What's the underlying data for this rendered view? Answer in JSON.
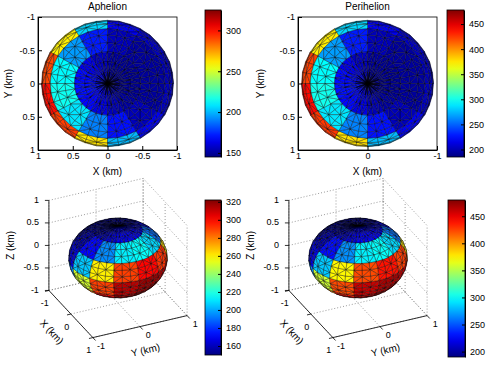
{
  "chart_data": [
    {
      "type": "surface",
      "title": "Aphelion",
      "xlabel": "X (km)",
      "ylabel": "Y (km)",
      "xlim": [
        1,
        -1
      ],
      "xticks": [
        1,
        0.5,
        0,
        -0.5,
        -1
      ],
      "ylim": [
        -1,
        1
      ],
      "yticks": [
        -1,
        -0.5,
        0,
        0.5,
        1
      ],
      "radii": [
        0.95,
        0.95,
        0.7
      ],
      "latitudes": [
        75,
        45,
        15,
        -15,
        -45,
        -75
      ],
      "longitudes": [
        15,
        45,
        75,
        105,
        135,
        165,
        195,
        225,
        255,
        285,
        315,
        345
      ],
      "cells": [
        [
          170,
          168,
          162,
          155,
          150,
          148,
          148,
          148,
          150,
          156,
          163,
          169
        ],
        [
          215,
          208,
          190,
          170,
          155,
          150,
          150,
          150,
          155,
          172,
          195,
          212
        ],
        [
          300,
          292,
          262,
          200,
          165,
          156,
          154,
          156,
          165,
          205,
          260,
          290
        ],
        [
          318,
          312,
          295,
          258,
          190,
          165,
          160,
          165,
          195,
          250,
          290,
          312
        ],
        [
          322,
          318,
          306,
          285,
          256,
          226,
          208,
          220,
          248,
          278,
          300,
          316
        ],
        [
          314,
          312,
          307,
          299,
          291,
          284,
          281,
          283,
          289,
          297,
          305,
          312
        ]
      ],
      "clim": [
        145,
        325
      ],
      "cticks": [
        150,
        200,
        250,
        300
      ]
    },
    {
      "type": "surface",
      "title": "Perihelion",
      "xlabel": "X (km)",
      "ylabel": "Y (km)",
      "xlim": [
        1,
        -1
      ],
      "xticks": [
        1,
        0,
        -1
      ],
      "ylim": [
        -1,
        1
      ],
      "yticks": [
        -1,
        -0.5,
        0,
        0.5,
        1
      ],
      "radii": [
        0.95,
        0.95,
        0.7
      ],
      "latitudes": [
        75,
        45,
        15,
        -15,
        -45,
        -75
      ],
      "longitudes": [
        15,
        45,
        75,
        105,
        135,
        165,
        195,
        225,
        255,
        285,
        315,
        345
      ],
      "cells": [
        [
          226,
          223,
          213,
          201,
          193,
          190,
          190,
          190,
          193,
          203,
          215,
          224
        ],
        [
          300,
          288,
          259,
          226,
          201,
          193,
          193,
          193,
          201,
          229,
          267,
          295
        ],
        [
          439,
          426,
          377,
          275,
          218,
          203,
          200,
          203,
          218,
          283,
          373,
          423
        ],
        [
          468,
          459,
          431,
          370,
          259,
          218,
          210,
          218,
          267,
          357,
          423,
          459
        ],
        [
          475,
          468,
          449,
          414,
          367,
          318,
          288,
          308,
          354,
          403,
          439,
          465
        ],
        [
          462,
          459,
          450,
          437,
          424,
          413,
          408,
          411,
          421,
          434,
          447,
          459
        ]
      ],
      "clim": [
        185,
        478
      ],
      "cticks": [
        200,
        250,
        300,
        350,
        400,
        450
      ]
    },
    {
      "type": "surface",
      "xlabel": "X (km)",
      "ylabel": "Y (km)",
      "zlabel": "Z (km)",
      "xlim": [
        -1,
        1
      ],
      "xticks": [
        -1,
        0,
        1
      ],
      "ylim": [
        -1,
        1
      ],
      "yticks": [
        -1,
        0,
        1
      ],
      "zlim": [
        -1,
        1
      ],
      "zticks": [
        -1,
        -0.5,
        0,
        0.5,
        1
      ],
      "radii": [
        0.95,
        0.95,
        0.7
      ],
      "latitudes": [
        75,
        45,
        15,
        -15,
        -45,
        -75
      ],
      "longitudes": [
        15,
        45,
        75,
        105,
        135,
        165,
        195,
        225,
        255,
        285,
        315,
        345
      ],
      "cells": [
        [
          170,
          168,
          162,
          155,
          150,
          148,
          148,
          148,
          150,
          156,
          163,
          169
        ],
        [
          215,
          208,
          190,
          170,
          155,
          150,
          150,
          150,
          155,
          172,
          195,
          212
        ],
        [
          300,
          292,
          262,
          200,
          165,
          156,
          154,
          156,
          165,
          205,
          260,
          290
        ],
        [
          318,
          312,
          295,
          258,
          190,
          165,
          160,
          165,
          195,
          250,
          290,
          312
        ],
        [
          322,
          318,
          306,
          285,
          256,
          226,
          208,
          220,
          248,
          278,
          300,
          316
        ],
        [
          314,
          312,
          307,
          299,
          291,
          284,
          281,
          283,
          289,
          297,
          305,
          312
        ]
      ],
      "clim": [
        150,
        322
      ],
      "cticks": [
        160,
        180,
        200,
        220,
        240,
        260,
        280,
        300,
        320
      ]
    },
    {
      "type": "surface",
      "xlabel": "X (km)",
      "ylabel": "Y (km)",
      "zlabel": "Z (km)",
      "xlim": [
        -1,
        1
      ],
      "xticks": [
        -1,
        0,
        1
      ],
      "ylim": [
        -1,
        1
      ],
      "yticks": [
        -1,
        0,
        1
      ],
      "zlim": [
        -1,
        1
      ],
      "zticks": [
        -1,
        -0.5,
        0,
        0.5,
        1
      ],
      "radii": [
        0.95,
        0.95,
        0.7
      ],
      "latitudes": [
        75,
        45,
        15,
        -15,
        -45,
        -75
      ],
      "longitudes": [
        15,
        45,
        75,
        105,
        135,
        165,
        195,
        225,
        255,
        285,
        315,
        345
      ],
      "cells": [
        [
          226,
          223,
          213,
          201,
          193,
          190,
          190,
          190,
          193,
          203,
          215,
          224
        ],
        [
          300,
          288,
          259,
          226,
          201,
          193,
          193,
          193,
          201,
          229,
          267,
          295
        ],
        [
          439,
          426,
          377,
          275,
          218,
          203,
          200,
          203,
          218,
          283,
          373,
          423
        ],
        [
          468,
          459,
          431,
          370,
          259,
          218,
          210,
          218,
          267,
          357,
          423,
          459
        ],
        [
          475,
          468,
          449,
          414,
          367,
          318,
          288,
          308,
          354,
          403,
          439,
          465
        ],
        [
          462,
          459,
          450,
          437,
          424,
          413,
          408,
          411,
          421,
          434,
          447,
          459
        ]
      ],
      "clim": [
        190,
        480
      ],
      "cticks": [
        200,
        250,
        300,
        350,
        400,
        450
      ]
    }
  ]
}
